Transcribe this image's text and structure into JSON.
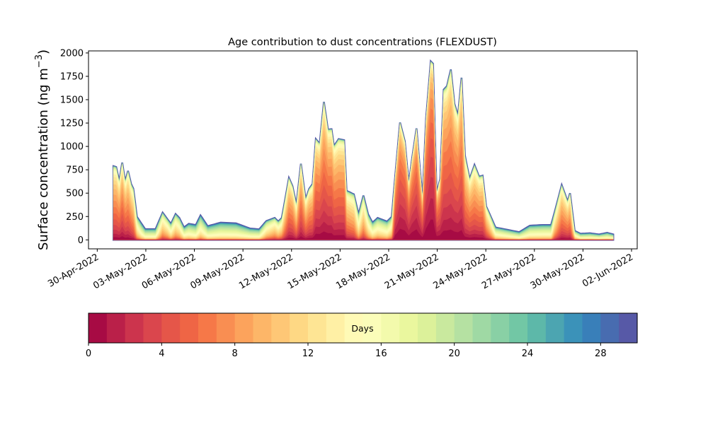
{
  "chart_data": {
    "type": "area",
    "stacked": true,
    "title": "Age contribution to dust concentrations (FLEXDUST)",
    "ylabel_main": "Surface concentration (ng m",
    "ylabel_sup": "−3",
    "ylabel_end": ")",
    "xlabel": "",
    "x_units": "days since 30-Apr-2022 00:00",
    "xlim": [
      -0.54,
      33.35
    ],
    "ylim": [
      -96,
      2022
    ],
    "yticks": [
      0,
      250,
      500,
      750,
      1000,
      1250,
      1500,
      1750,
      2000
    ],
    "xticks": [
      {
        "value": 0,
        "label": "30-Apr-2022"
      },
      {
        "value": 3,
        "label": "03-May-2022"
      },
      {
        "value": 6,
        "label": "06-May-2022"
      },
      {
        "value": 9,
        "label": "09-May-2022"
      },
      {
        "value": 12,
        "label": "12-May-2022"
      },
      {
        "value": 15,
        "label": "15-May-2022"
      },
      {
        "value": 18,
        "label": "18-May-2022"
      },
      {
        "value": 21,
        "label": "21-May-2022"
      },
      {
        "value": 24,
        "label": "24-May-2022"
      },
      {
        "value": 27,
        "label": "27-May-2022"
      },
      {
        "value": 30,
        "label": "30-May-2022"
      },
      {
        "value": 33,
        "label": "02-Jun-2022"
      }
    ],
    "series_total": {
      "x": [
        1.0,
        1.17,
        1.36,
        1.54,
        1.73,
        1.9,
        2.09,
        2.23,
        2.45,
        2.74,
        2.96,
        3.6,
        4.04,
        4.33,
        4.55,
        4.84,
        5.07,
        5.36,
        5.65,
        6.09,
        6.38,
        6.82,
        7.62,
        8.57,
        9.44,
        10.0,
        10.45,
        10.96,
        11.18,
        11.4,
        11.84,
        12.06,
        12.3,
        12.58,
        12.87,
        13.09,
        13.3,
        13.5,
        13.74,
        14.0,
        14.25,
        14.47,
        14.62,
        14.91,
        15.25,
        15.4,
        15.85,
        16.14,
        16.44,
        16.73,
        17.0,
        17.32,
        17.9,
        18.19,
        18.41,
        18.7,
        19.0,
        19.24,
        19.43,
        19.72,
        20.09,
        20.31,
        20.6,
        20.74,
        20.96,
        21.18,
        21.4,
        21.6,
        21.84,
        22.06,
        22.28,
        22.5,
        22.71,
        23.0,
        23.3,
        23.59,
        23.8,
        24.02,
        24.31,
        24.6,
        25.33,
        26.06,
        26.72,
        27.52,
        28.03,
        28.25,
        28.69,
        29.05,
        29.2,
        29.49,
        29.85,
        30.43,
        31.0,
        31.5,
        31.87
      ],
      "y": [
        789,
        780,
        625,
        827,
        627,
        738,
        600,
        549,
        247,
        172,
        115,
        115,
        292,
        222,
        172,
        277,
        235,
        133,
        172,
        160,
        262,
        147,
        185,
        177,
        122,
        113,
        202,
        235,
        197,
        235,
        663,
        575,
        373,
        815,
        433,
        547,
        598,
        1079,
        1029,
        1477,
        1180,
        1185,
        1003,
        1079,
        1067,
        525,
        488,
        274,
        475,
        274,
        185,
        235,
        197,
        247,
        700,
        1256,
        1054,
        600,
        852,
        1193,
        436,
        1306,
        1911,
        1886,
        499,
        650,
        1608,
        1646,
        1823,
        1457,
        1330,
        1735,
        903,
        650,
        802,
        676,
        688,
        360,
        247,
        133,
        108,
        83,
        152,
        160,
        160,
        297,
        587,
        411,
        499,
        96,
        66,
        71,
        58,
        76,
        58
      ],
      "median_age_days": [
        7,
        7,
        7,
        6,
        7,
        7,
        8,
        9,
        14,
        17,
        18,
        18,
        12,
        13,
        15,
        13,
        14,
        17,
        17,
        18,
        16,
        18,
        18,
        18,
        18,
        18,
        14,
        12,
        13,
        12,
        7,
        7,
        9,
        6,
        8,
        7,
        7,
        5,
        5,
        5,
        5,
        5,
        6,
        6,
        6,
        9,
        10,
        14,
        11,
        14,
        16,
        15,
        16,
        14,
        4,
        3,
        3,
        4,
        3,
        3,
        5,
        3,
        2,
        2,
        4,
        4,
        5,
        5,
        5,
        5,
        5,
        5,
        7,
        7,
        7,
        7,
        7,
        9,
        12,
        16,
        17,
        18,
        17,
        17,
        17,
        12,
        8,
        8,
        8,
        15,
        18,
        18,
        18,
        18,
        18
      ]
    },
    "colorbar": {
      "label": "Days",
      "range": [
        0,
        30
      ],
      "levels": 30,
      "ticks": [
        0,
        4,
        8,
        12,
        16,
        20,
        24,
        28
      ],
      "colormap": "Spectral",
      "colormap_nodes": [
        "#9e0142",
        "#d53e4f",
        "#f46d43",
        "#fdae61",
        "#fee08b",
        "#ffffbf",
        "#e6f598",
        "#abdda4",
        "#66c2a5",
        "#3288bd",
        "#5e4fa2"
      ]
    }
  }
}
